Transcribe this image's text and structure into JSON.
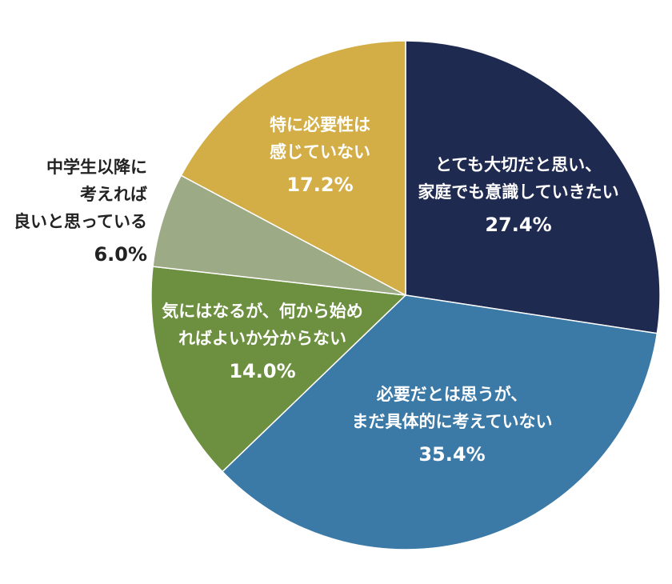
{
  "chart_data": {
    "type": "pie",
    "title": "",
    "start_angle_deg": 0,
    "direction": "clockwise",
    "slices": [
      {
        "label_lines": [
          "とても大切だと思い、",
          "家庭でも意識していきたい"
        ],
        "value": 27.4,
        "value_label": "27.4%",
        "color": "#1f2a50",
        "text_color": "#ffffff",
        "label_position": "inside"
      },
      {
        "label_lines": [
          "必要だとは思うが、",
          "まだ具体的に考えていない"
        ],
        "value": 35.4,
        "value_label": "35.4%",
        "color": "#3b79a6",
        "text_color": "#ffffff",
        "label_position": "inside"
      },
      {
        "label_lines": [
          "気にはなるが、何から始め",
          "ればよいか分からない"
        ],
        "value": 14.0,
        "value_label": "14.0%",
        "color": "#6c903f",
        "text_color": "#ffffff",
        "label_position": "inside"
      },
      {
        "label_lines": [
          "中学生以降に",
          "考えれば",
          "良いと思っている"
        ],
        "value": 6.0,
        "value_label": "6.0%",
        "color": "#9daa86",
        "text_color": "#222222",
        "label_position": "outside-left"
      },
      {
        "label_lines": [
          "特に必要性は",
          "感じていない"
        ],
        "value": 17.2,
        "value_label": "17.2%",
        "color": "#d3ad45",
        "text_color": "#ffffff",
        "label_position": "inside"
      }
    ]
  }
}
